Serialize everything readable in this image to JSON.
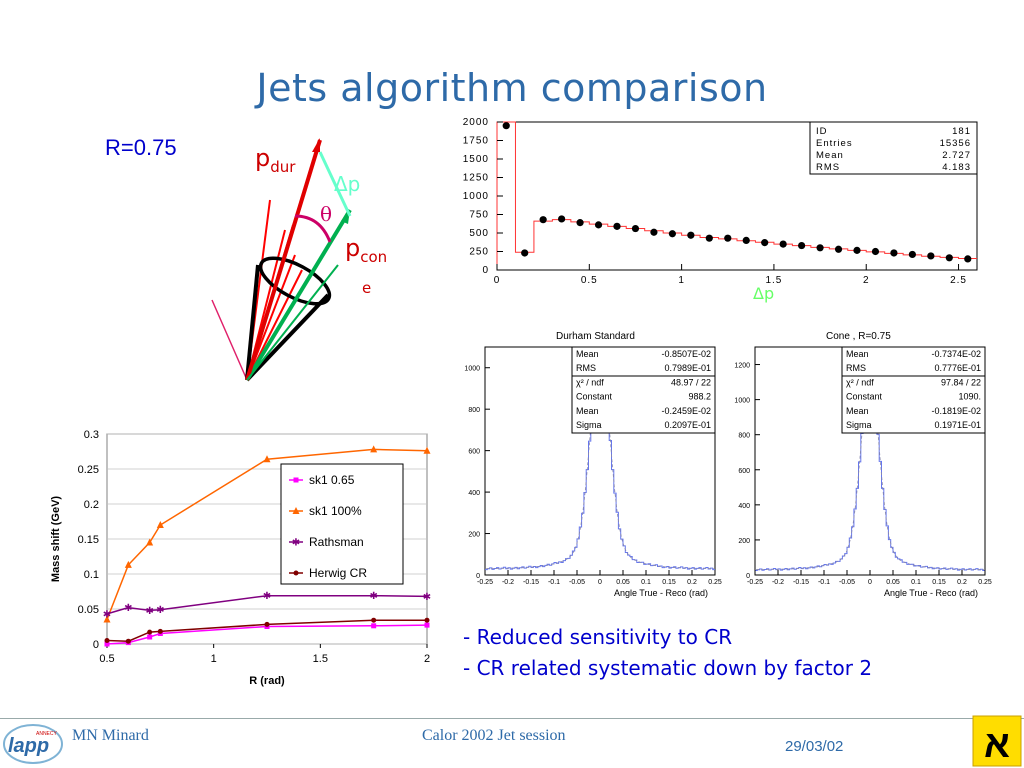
{
  "slide": {
    "title": "Jets algorithm comparison",
    "r_label": "R=0.75",
    "bullets": [
      "- Reduced sensitivity to CR",
      "- CR related systematic down by factor 2"
    ],
    "footer": {
      "author": "MN Minard",
      "session": "Calor 2002 Jet session",
      "date": "29/03/02",
      "logo_text": "lapp",
      "logo_small": "ANNECY"
    }
  },
  "diagram": {
    "p_dur": "p",
    "p_dur_sub": "dur",
    "delta_p": "Δp",
    "theta": "θ",
    "p_cone": "p",
    "p_cone_sub": "con",
    "p_cone_sub2": "e",
    "colors": {
      "p_dur": "#e00000",
      "delta_p": "#66ffcc",
      "p_cone": "#00b050",
      "theta": "#cc0066",
      "p_label": "#cc0000"
    }
  },
  "histogram": {
    "stats": [
      {
        "label": "ID",
        "value": "181"
      },
      {
        "label": "Entries",
        "value": "15356"
      },
      {
        "label": "Mean",
        "value": "2.727"
      },
      {
        "label": "RMS",
        "value": "4.183"
      }
    ],
    "x_label": "Δp",
    "x_ticks": [
      "0",
      "0.5",
      "1",
      "1.5",
      "2",
      "2.5"
    ],
    "y_ticks": [
      "0",
      "250",
      "500",
      "750",
      "1000",
      "1250",
      "1500",
      "1750",
      "2000"
    ]
  },
  "durham": {
    "title": "Durham Standard",
    "x_label": "Angle True - Reco (rad)",
    "stats": [
      {
        "label": "Mean",
        "value": "-0.8507E-02"
      },
      {
        "label": "RMS",
        "value": "0.7989E-01"
      },
      {
        "label": "χ² / ndf",
        "value": "48.97   /   22"
      },
      {
        "label": "Constant",
        "value": "988.2"
      },
      {
        "label": "Mean",
        "value": "-0.2459E-02"
      },
      {
        "label": "Sigma",
        "value": "0.2097E-01"
      }
    ],
    "y_ticks": [
      "0",
      "200",
      "400",
      "600",
      "800",
      "1000"
    ],
    "x_ticks": [
      "-0.25",
      "-0.2",
      "-0.15",
      "-0.1",
      "-0.05",
      "0",
      "0.05",
      "0.1",
      "0.15",
      "0.2",
      "0.25"
    ]
  },
  "cone": {
    "title": "Cone , R=0.75",
    "x_label": "Angle True - Reco (rad)",
    "stats": [
      {
        "label": "Mean",
        "value": "-0.7374E-02"
      },
      {
        "label": "RMS",
        "value": "0.7776E-01"
      },
      {
        "label": "χ² / ndf",
        "value": "97.84   /   22"
      },
      {
        "label": "Constant",
        "value": "1090."
      },
      {
        "label": "Mean",
        "value": "-0.1819E-02"
      },
      {
        "label": "Sigma",
        "value": "0.1971E-01"
      }
    ],
    "y_ticks": [
      "0",
      "200",
      "400",
      "600",
      "800",
      "1000",
      "1200"
    ],
    "x_ticks": [
      "-0.25",
      "-0.2",
      "-0.15",
      "-0.1",
      "-0.05",
      "0",
      "0.05",
      "0.1",
      "0.15",
      "0.2",
      "0.25"
    ]
  },
  "chart_data": [
    {
      "type": "bar",
      "x_edges": [
        0,
        0.05,
        0.1,
        0.15,
        0.2,
        0.25,
        0.3,
        0.35,
        0.4,
        0.45,
        0.5,
        0.55,
        0.6,
        0.65,
        0.7,
        0.75,
        0.8,
        0.85,
        0.9,
        0.95,
        1.0,
        1.05,
        1.1,
        1.15,
        1.2,
        1.25,
        1.3,
        1.35,
        1.4,
        1.45,
        1.5,
        1.55,
        1.6,
        1.65,
        1.7,
        1.75,
        1.8,
        1.85,
        1.9,
        1.95,
        2.0,
        2.05,
        2.1,
        2.15,
        2.2,
        2.25,
        2.3,
        2.35,
        2.4,
        2.45,
        2.5,
        2.55,
        2.6
      ],
      "line_values": [
        2050,
        2050,
        240,
        240,
        660,
        660,
        680,
        680,
        650,
        650,
        620,
        620,
        590,
        590,
        560,
        560,
        530,
        530,
        500,
        500,
        470,
        470,
        440,
        440,
        420,
        420,
        395,
        395,
        375,
        375,
        350,
        350,
        330,
        330,
        305,
        305,
        285,
        285,
        265,
        265,
        245,
        245,
        225,
        225,
        205,
        205,
        185,
        185,
        170,
        170,
        155,
        155
      ],
      "points_x": [
        0.05,
        0.15,
        0.25,
        0.35,
        0.45,
        0.55,
        0.65,
        0.75,
        0.85,
        0.95,
        1.05,
        1.15,
        1.25,
        1.35,
        1.45,
        1.55,
        1.65,
        1.75,
        1.85,
        1.95,
        2.05,
        2.15,
        2.25,
        2.35,
        2.45,
        2.55
      ],
      "points_y": [
        1950,
        230,
        680,
        690,
        640,
        610,
        590,
        560,
        510,
        490,
        470,
        430,
        430,
        400,
        370,
        350,
        330,
        300,
        280,
        265,
        250,
        230,
        210,
        190,
        165,
        150
      ],
      "xlim": [
        0,
        2.6
      ],
      "ylim": [
        0,
        2000
      ]
    },
    {
      "type": "line",
      "xlabel": "R (rad)",
      "ylabel": "Mass shift (GeV)",
      "xlim": [
        0.5,
        2
      ],
      "ylim": [
        0,
        0.3
      ],
      "x_ticks": [
        "0.5",
        "1",
        "1.5",
        "2"
      ],
      "y_ticks": [
        "0",
        "0.05",
        "0.1",
        "0.15",
        "0.2",
        "0.25",
        "0.3"
      ],
      "legend": "right",
      "series": [
        {
          "name": "sk1 0.65",
          "color": "#ff00ff",
          "marker": "square",
          "x": [
            0.5,
            0.6,
            0.7,
            0.75,
            1.25,
            1.75,
            2.0
          ],
          "y": [
            0.0,
            0.002,
            0.01,
            0.015,
            0.025,
            0.026,
            0.027
          ]
        },
        {
          "name": "sk1 100%",
          "color": "#ff6600",
          "marker": "triangle",
          "x": [
            0.5,
            0.6,
            0.7,
            0.75,
            1.25,
            1.75,
            2.0
          ],
          "y": [
            0.035,
            0.113,
            0.145,
            0.17,
            0.264,
            0.278,
            0.276
          ]
        },
        {
          "name": "Rathsman",
          "color": "#800080",
          "marker": "star",
          "x": [
            0.5,
            0.6,
            0.7,
            0.75,
            1.25,
            1.75,
            2.0
          ],
          "y": [
            0.043,
            0.052,
            0.048,
            0.049,
            0.069,
            0.069,
            0.068
          ]
        },
        {
          "name": "Herwig CR",
          "color": "#800000",
          "marker": "circle",
          "x": [
            0.5,
            0.6,
            0.7,
            0.75,
            1.25,
            1.75,
            2.0
          ],
          "y": [
            0.005,
            0.004,
            0.017,
            0.018,
            0.028,
            0.034,
            0.034
          ]
        }
      ]
    },
    {
      "type": "bar",
      "name_ref": "durham",
      "xlim": [
        -0.25,
        0.25
      ],
      "ylim": [
        0,
        1100
      ],
      "peak": 1010,
      "sigma": 0.021,
      "base": 30
    },
    {
      "type": "bar",
      "name_ref": "cone",
      "xlim": [
        -0.25,
        0.25
      ],
      "ylim": [
        0,
        1300
      ],
      "peak": 1090,
      "sigma": 0.0197,
      "base": 30
    }
  ]
}
